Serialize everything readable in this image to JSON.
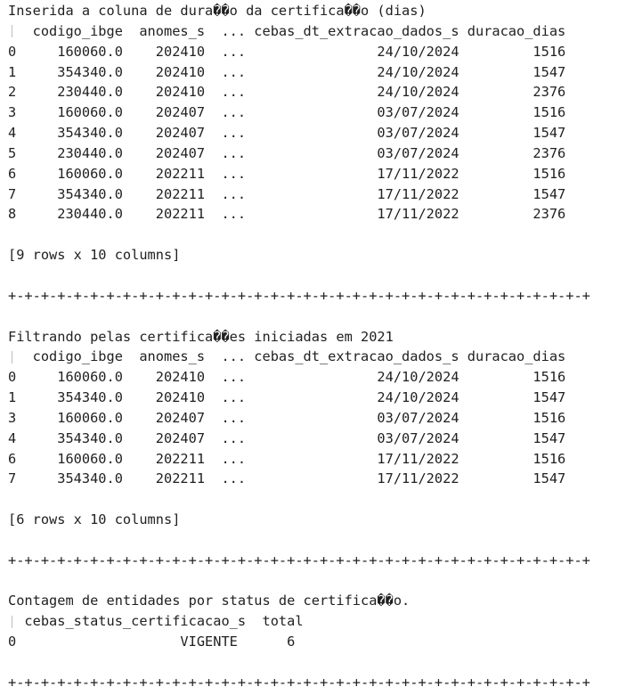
{
  "output_text": {
    "section1": {
      "title": "Inserida a coluna de dura��o da certifica��o (dias)",
      "header": "   codigo_ibge  anomes_s  ... cebas_dt_extracao_dados_s duracao_dias",
      "rows": [
        "0     160060.0    202410  ...                24/10/2024         1516",
        "1     354340.0    202410  ...                24/10/2024         1547",
        "2     230440.0    202410  ...                24/10/2024         2376",
        "3     160060.0    202407  ...                03/07/2024         1516",
        "4     354340.0    202407  ...                03/07/2024         1547",
        "5     230440.0    202407  ...                03/07/2024         2376",
        "6     160060.0    202211  ...                17/11/2022         1516",
        "7     354340.0    202211  ...                17/11/2022         1547",
        "8     230440.0    202211  ...                17/11/2022         2376"
      ],
      "shape": "[9 rows x 10 columns]"
    },
    "separator": "+-+-+-+-+-+-+-+-+-+-+-+-+-+-+-+-+-+-+-+-+-+-+-+-+-+-+-+-+-+-+-+-+-+-+-+",
    "section2": {
      "title": "Filtrando pelas certifica��es iniciadas em 2021",
      "header": "   codigo_ibge  anomes_s  ... cebas_dt_extracao_dados_s duracao_dias",
      "rows": [
        "0     160060.0    202410  ...                24/10/2024         1516",
        "1     354340.0    202410  ...                24/10/2024         1547",
        "3     160060.0    202407  ...                03/07/2024         1516",
        "4     354340.0    202407  ...                03/07/2024         1547",
        "6     160060.0    202211  ...                17/11/2022         1516",
        "7     354340.0    202211  ...                17/11/2022         1547"
      ],
      "shape": "[6 rows x 10 columns]"
    },
    "section3": {
      "title": "Contagem de entidades por status de certifica��o.",
      "header": "  cebas_status_certificacao_s  total",
      "rows": [
        "0                    VIGENTE      6"
      ]
    }
  },
  "colors": {
    "background": "#ffffff",
    "text": "#212121",
    "index_guide": "#bdbdbd"
  }
}
